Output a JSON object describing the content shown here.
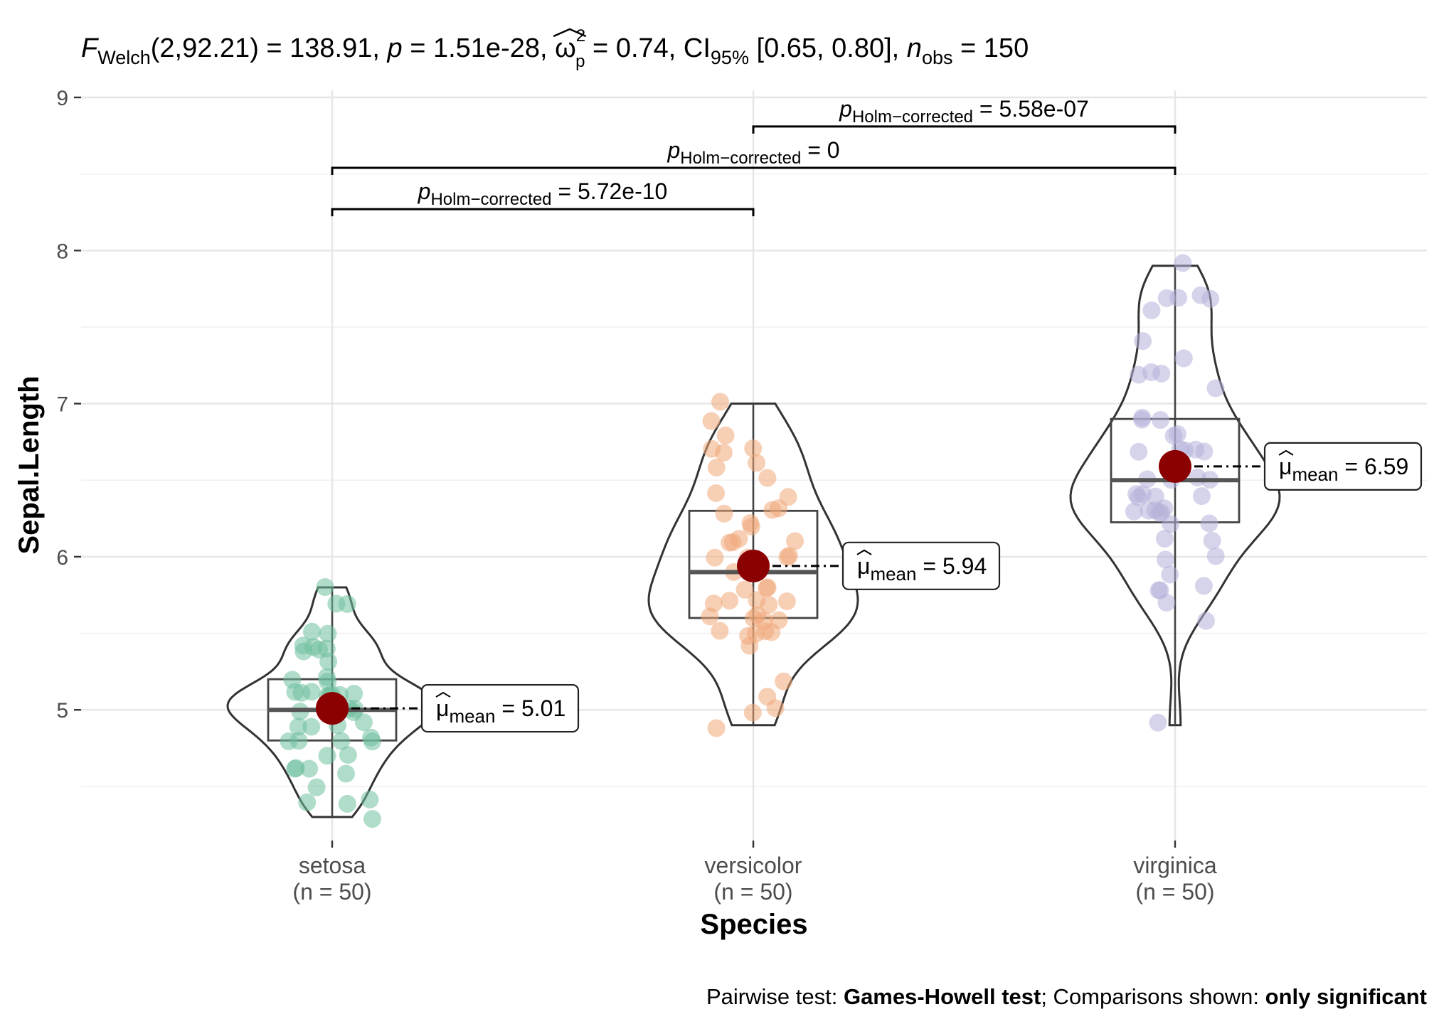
{
  "chart_data": {
    "type": "violin-box-scatter",
    "subtitle": {
      "stat_symbol": "F",
      "stat_sub": "Welch",
      "stat_df": "(2,92.21)",
      "stat_value": "138.91",
      "p_symbol": "p",
      "p_value": "1.51e-28",
      "effect_symbol": "ω",
      "effect_sup": "2",
      "effect_sub": "p",
      "effect_value": "0.74",
      "ci_symbol": "CI",
      "ci_sub": "95%",
      "ci_value": "[0.65, 0.80]",
      "n_symbol": "n",
      "n_sub": "obs",
      "n_value": "150"
    },
    "xlabel": "Species",
    "ylabel": "Sepal.Length",
    "ylim": [
      4.1,
      9.0
    ],
    "yticks": [
      5,
      6,
      7,
      8,
      9
    ],
    "grid": true,
    "groups": [
      {
        "name": "setosa",
        "n_label": "(n = 50)",
        "color": "#6fbf9f",
        "mean": 5.01,
        "mean_label": "5.01",
        "box": {
          "q1": 4.8,
          "median": 5.0,
          "q3": 5.2,
          "min": 4.3,
          "max": 5.8
        },
        "points": [
          5.1,
          4.9,
          4.7,
          4.6,
          5.0,
          5.4,
          4.6,
          5.0,
          4.4,
          4.9,
          5.4,
          4.8,
          4.8,
          4.3,
          5.8,
          5.7,
          5.4,
          5.1,
          5.7,
          5.1,
          5.4,
          5.1,
          4.6,
          5.1,
          4.8,
          5.0,
          5.0,
          5.2,
          5.2,
          4.7,
          4.8,
          5.4,
          5.2,
          5.5,
          4.9,
          5.0,
          5.5,
          4.9,
          4.4,
          5.1,
          5.0,
          4.5,
          4.4,
          5.0,
          5.1,
          4.8,
          5.1,
          4.6,
          5.3,
          5.0
        ]
      },
      {
        "name": "versicolor",
        "n_label": "(n = 50)",
        "color": "#f0a878",
        "mean": 5.94,
        "mean_label": "5.94",
        "box": {
          "q1": 5.6,
          "median": 5.9,
          "q3": 6.3,
          "min": 4.9,
          "max": 7.0
        },
        "points": [
          7.0,
          6.4,
          6.9,
          5.5,
          6.5,
          5.7,
          6.3,
          4.9,
          6.6,
          5.2,
          5.0,
          5.9,
          6.0,
          6.1,
          5.6,
          6.7,
          5.6,
          5.8,
          6.2,
          5.6,
          5.9,
          6.1,
          6.3,
          6.1,
          6.4,
          6.6,
          6.8,
          6.7,
          6.0,
          5.7,
          5.5,
          5.5,
          5.8,
          6.0,
          5.4,
          6.0,
          6.7,
          6.3,
          5.6,
          5.5,
          5.5,
          6.1,
          5.8,
          5.0,
          5.6,
          5.7,
          5.7,
          6.2,
          5.1,
          5.7
        ]
      },
      {
        "name": "virginica",
        "n_label": "(n = 50)",
        "color": "#b4b0d8",
        "mean": 6.59,
        "mean_label": "6.59",
        "box": {
          "q1": 6.225,
          "median": 6.5,
          "q3": 6.9,
          "min": 4.9,
          "max": 7.9
        },
        "points": [
          6.3,
          5.8,
          7.1,
          6.3,
          6.5,
          7.6,
          4.9,
          7.3,
          6.7,
          7.2,
          6.5,
          6.4,
          6.8,
          5.7,
          5.8,
          6.4,
          6.5,
          7.7,
          7.7,
          6.0,
          6.9,
          5.6,
          7.7,
          6.3,
          6.7,
          7.2,
          6.2,
          6.1,
          6.4,
          7.2,
          7.4,
          7.9,
          6.4,
          6.3,
          6.1,
          7.7,
          6.3,
          6.4,
          6.0,
          6.9,
          6.7,
          6.9,
          5.8,
          6.8,
          6.7,
          6.7,
          6.3,
          6.5,
          6.2,
          5.9
        ]
      }
    ],
    "comparisons": [
      {
        "from": "setosa",
        "to": "versicolor",
        "level": 1,
        "label_symbol": "p",
        "label_sub": "Holm−corrected",
        "label_value": "= 5.72e-10"
      },
      {
        "from": "setosa",
        "to": "virginica",
        "level": 2,
        "label_symbol": "p",
        "label_sub": "Holm−corrected",
        "label_value": "= 0"
      },
      {
        "from": "versicolor",
        "to": "virginica",
        "level": 3,
        "label_symbol": "p",
        "label_sub": "Holm−corrected",
        "label_value": "= 5.58e-07"
      }
    ],
    "mean_symbol": "μ",
    "mean_sub": "mean",
    "mean_eq": "=",
    "mean_color": "#8b0000",
    "caption": {
      "part1": "Pairwise test: ",
      "part2": "Games-Howell test",
      "part3": "; Comparisons shown: ",
      "part4": "only significant"
    }
  }
}
